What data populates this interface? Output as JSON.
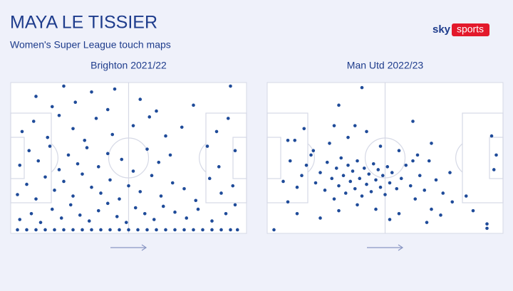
{
  "header": {
    "title": "MAYA LE TISSIER",
    "subtitle": "Women's Super League touch maps",
    "brand": "sky",
    "brand_sub": "sports"
  },
  "chart_data": [
    {
      "type": "scatter",
      "title": "Brighton 2021/22",
      "color": "#1f4b99",
      "xlim": [
        0,
        100
      ],
      "ylim": [
        0,
        100
      ],
      "x": [
        2,
        6,
        10,
        14,
        18,
        22,
        26,
        30,
        34,
        38,
        42,
        46,
        50,
        54,
        58,
        62,
        66,
        70,
        74,
        78,
        82,
        86,
        90,
        94,
        97,
        3,
        8,
        12,
        17,
        21,
        25,
        29,
        33,
        37,
        41,
        45,
        49,
        53,
        57,
        61,
        65,
        70,
        75,
        80,
        86,
        92,
        96,
        2,
        6,
        10,
        14,
        18,
        22,
        26,
        30,
        34,
        38,
        42,
        46,
        50,
        55,
        60,
        64,
        69,
        74,
        79,
        85,
        90,
        95,
        3,
        7,
        11,
        16,
        20,
        24,
        28,
        32,
        37,
        41,
        47,
        52,
        58,
        63,
        68,
        84,
        89,
        96,
        4,
        9,
        15,
        20,
        26,
        31,
        36,
        43,
        52,
        59,
        66,
        73,
        88,
        93,
        10,
        17,
        22,
        27,
        34,
        41,
        44,
        55,
        62,
        78,
        94
      ],
      "y": [
        1,
        1,
        1,
        1,
        1,
        1,
        1,
        1,
        1,
        1,
        1,
        1,
        1,
        1,
        1,
        1,
        1,
        1,
        1,
        1,
        1,
        1,
        1,
        1,
        1,
        8,
        12,
        6,
        15,
        9,
        18,
        11,
        7,
        14,
        19,
        10,
        6,
        16,
        12,
        8,
        17,
        13,
        9,
        15,
        7,
        12,
        18,
        25,
        32,
        22,
        37,
        28,
        34,
        24,
        39,
        30,
        26,
        35,
        22,
        31,
        27,
        38,
        24,
        33,
        29,
        21,
        36,
        26,
        31,
        45,
        55,
        48,
        58,
        42,
        52,
        46,
        57,
        44,
        53,
        49,
        41,
        56,
        47,
        52,
        58,
        44,
        55,
        68,
        75,
        64,
        79,
        70,
        62,
        77,
        66,
        72,
        78,
        65,
        71,
        68,
        77,
        92,
        85,
        99,
        88,
        95,
        83,
        97,
        90,
        82,
        86,
        99
      ]
    },
    {
      "type": "scatter",
      "title": "Man Utd 2022/23",
      "color": "#1f4b99",
      "xlim": [
        0,
        100
      ],
      "ylim": [
        0,
        100
      ],
      "x": [
        2,
        12,
        14,
        16,
        18,
        20,
        22,
        24,
        25,
        27,
        28,
        29,
        30,
        31,
        32,
        33,
        34,
        35,
        36,
        37,
        38,
        39,
        40,
        41,
        42,
        43,
        44,
        45,
        46,
        47,
        48,
        49,
        50,
        51,
        52,
        53,
        55,
        57,
        59,
        61,
        63,
        65,
        67,
        69,
        72,
        75,
        78,
        70,
        74,
        79,
        68,
        56,
        52,
        46,
        38,
        30,
        22,
        12,
        8,
        6,
        9,
        11,
        8,
        15,
        19,
        26,
        34,
        37,
        30,
        42,
        48,
        56,
        64,
        62,
        40,
        28,
        88,
        85,
        94,
        94,
        96,
        97,
        98,
        70,
        62
      ],
      "y": [
        1,
        30,
        38,
        45,
        52,
        33,
        40,
        28,
        47,
        36,
        22,
        43,
        31,
        50,
        38,
        26,
        45,
        34,
        41,
        29,
        48,
        36,
        24,
        43,
        32,
        39,
        27,
        46,
        35,
        42,
        30,
        38,
        25,
        44,
        33,
        40,
        29,
        36,
        45,
        31,
        22,
        38,
        28,
        48,
        35,
        26,
        40,
        15,
        11,
        20,
        6,
        12,
        8,
        15,
        18,
        14,
        9,
        12,
        20,
        34,
        48,
        62,
        62,
        70,
        55,
        60,
        64,
        72,
        86,
        68,
        58,
        55,
        52,
        75,
        98,
        72,
        14,
        24,
        2,
        5,
        65,
        42,
        52,
        60,
        48
      ]
    }
  ]
}
